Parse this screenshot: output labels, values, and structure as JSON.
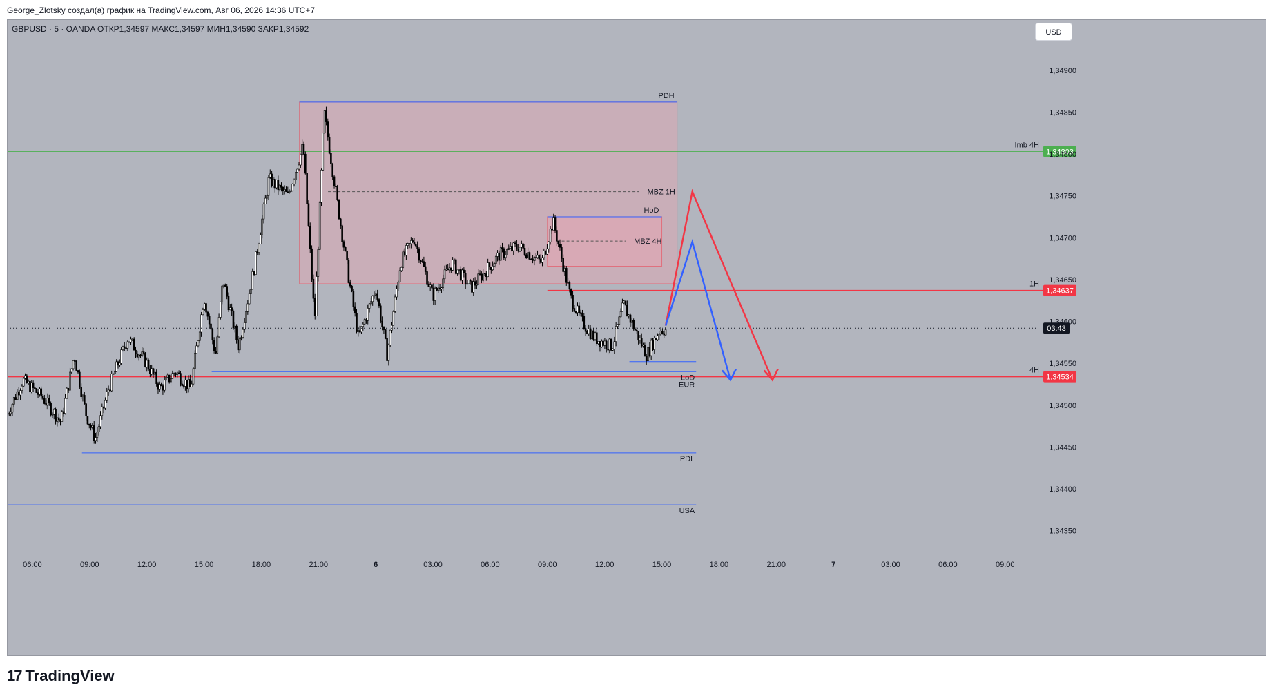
{
  "header": {
    "credit": "George_Zlotsky создал(а) график на TradingView.com, Авг 06, 2026 14:36 UTC+7",
    "symbol_info": "GBPUSD · 5 · OANDA  ОТКР1,34597  МАКС1,34597  МИН1,34590  ЗАКР1,34592",
    "currency_button": "USD"
  },
  "footer": {
    "logo_text": "TradingView",
    "logo_mark": "17"
  },
  "colors": {
    "background": "#b2b5be",
    "candle": "#000000",
    "zone_fill": "#f4a0b0",
    "blue_line": "#3361ff",
    "red_line": "#f23645",
    "green_line": "#4caf50"
  },
  "chart_data": {
    "type": "candlestick",
    "symbol": "GBPUSD",
    "timeframe": "5",
    "source": "OANDA",
    "ohlc_last": {
      "open": 1.34597,
      "high": 1.34597,
      "low": 1.3459,
      "close": 1.34592
    },
    "ylim": [
      1.34325,
      1.3496
    ],
    "y_ticks": [
      "1,34350",
      "1,34400",
      "1,34450",
      "1,34500",
      "1,34550",
      "1,34600",
      "1,34650",
      "1,34700",
      "1,34750",
      "1,34800",
      "1,34850",
      "1,34900"
    ],
    "y_tick_values": [
      1.3435,
      1.344,
      1.3445,
      1.345,
      1.3455,
      1.346,
      1.3465,
      1.347,
      1.3475,
      1.348,
      1.3485,
      1.349
    ],
    "x_ticks": [
      "06:00",
      "09:00",
      "12:00",
      "15:00",
      "18:00",
      "21:00",
      "6",
      "03:00",
      "06:00",
      "09:00",
      "12:00",
      "15:00",
      "18:00",
      "21:00",
      "7",
      "03:00",
      "06:00",
      "09:00"
    ],
    "x_tick_hours": [
      6,
      9,
      12,
      15,
      18,
      21,
      24,
      27,
      30,
      33,
      36,
      39,
      42,
      45,
      48,
      51,
      54,
      57
    ],
    "xlim_hours": [
      4.7,
      59
    ],
    "price_path": [
      [
        4.7,
        1.3449
      ],
      [
        5.5,
        1.3453
      ],
      [
        6.5,
        1.3451
      ],
      [
        7.5,
        1.3448
      ],
      [
        8.2,
        1.3456
      ],
      [
        8.8,
        1.3449
      ],
      [
        9.3,
        1.3446
      ],
      [
        10,
        1.3452
      ],
      [
        11,
        1.3458
      ],
      [
        12,
        1.3455
      ],
      [
        12.7,
        1.3452
      ],
      [
        13.5,
        1.3454
      ],
      [
        14.3,
        1.3452
      ],
      [
        15,
        1.3463
      ],
      [
        15.6,
        1.3456
      ],
      [
        16,
        1.3465
      ],
      [
        16.8,
        1.3457
      ],
      [
        17.6,
        1.3466
      ],
      [
        18.4,
        1.3477
      ],
      [
        19.4,
        1.3475
      ],
      [
        20.2,
        1.3481
      ],
      [
        20.8,
        1.346
      ],
      [
        21.3,
        1.3485
      ],
      [
        22,
        1.3474
      ],
      [
        22.6,
        1.3465
      ],
      [
        23.1,
        1.3458
      ],
      [
        24,
        1.3464
      ],
      [
        24.6,
        1.3456
      ],
      [
        25.3,
        1.3467
      ],
      [
        26,
        1.347
      ],
      [
        27,
        1.3463
      ],
      [
        28,
        1.3467
      ],
      [
        29,
        1.3464
      ],
      [
        30.5,
        1.3468
      ],
      [
        31.5,
        1.3469
      ],
      [
        32.7,
        1.3467
      ],
      [
        33.3,
        1.3472
      ],
      [
        33.8,
        1.3467
      ],
      [
        34.2,
        1.3463
      ],
      [
        34.8,
        1.346
      ],
      [
        35.5,
        1.3458
      ],
      [
        36.4,
        1.3457
      ],
      [
        37,
        1.3462
      ],
      [
        37.6,
        1.3459
      ],
      [
        38.2,
        1.3456
      ],
      [
        38.9,
        1.3459
      ],
      [
        39.2,
        1.3459
      ]
    ],
    "candle_count": 412,
    "zones": [
      {
        "label": "PDH",
        "top": 1.34862,
        "bottom": 1.34645,
        "from": 20.0,
        "to": 39.8
      },
      {
        "label": "HoD",
        "top": 1.34725,
        "bottom": 1.34666,
        "from": 33.0,
        "to": 39.0
      }
    ],
    "levels": [
      {
        "label": "Imb 4H",
        "value": 1.34803,
        "price_label": "1,34803",
        "color": "green",
        "from": 4.7,
        "to": 59
      },
      {
        "label": "1H",
        "value": 1.34637,
        "price_label": "1,34637",
        "color": "red",
        "from": 33.0,
        "to": 59
      },
      {
        "label": "4H",
        "value": 1.34534,
        "price_label": "1,34534",
        "color": "red",
        "from": 4.7,
        "to": 59
      },
      {
        "label": "LoD",
        "value": 1.3454,
        "color": "blue",
        "from": 15.4,
        "to": 40.8
      },
      {
        "label": "EUR",
        "value": 1.3454,
        "color": "blue",
        "from": 15.4,
        "to": 40.8
      },
      {
        "label": "PDL",
        "value": 1.34443,
        "color": "blue",
        "from": 8.6,
        "to": 40.8
      },
      {
        "label": "USA",
        "value": 1.34381,
        "color": "blue",
        "from": 4.7,
        "to": 40.8
      }
    ],
    "dashed_levels": [
      {
        "label": "MBZ 1H",
        "value": 1.34755,
        "from": 21.5,
        "to": 39.7
      },
      {
        "label": "MBZ 4H",
        "value": 1.34696,
        "from": 33.5,
        "to": 39.0
      }
    ],
    "lod_short_level": {
      "value": 1.34552,
      "from": 37.3,
      "to": 40.8
    },
    "current_price": {
      "value": 1.34592,
      "countdown": "03:43"
    },
    "projections": [
      {
        "color": "red",
        "points": [
          [
            39.2,
            1.34595
          ],
          [
            40.6,
            1.34755
          ],
          [
            44.8,
            1.3453
          ]
        ]
      },
      {
        "color": "blue",
        "points": [
          [
            39.2,
            1.34595
          ],
          [
            40.6,
            1.34695
          ],
          [
            42.6,
            1.3453
          ]
        ]
      }
    ]
  }
}
